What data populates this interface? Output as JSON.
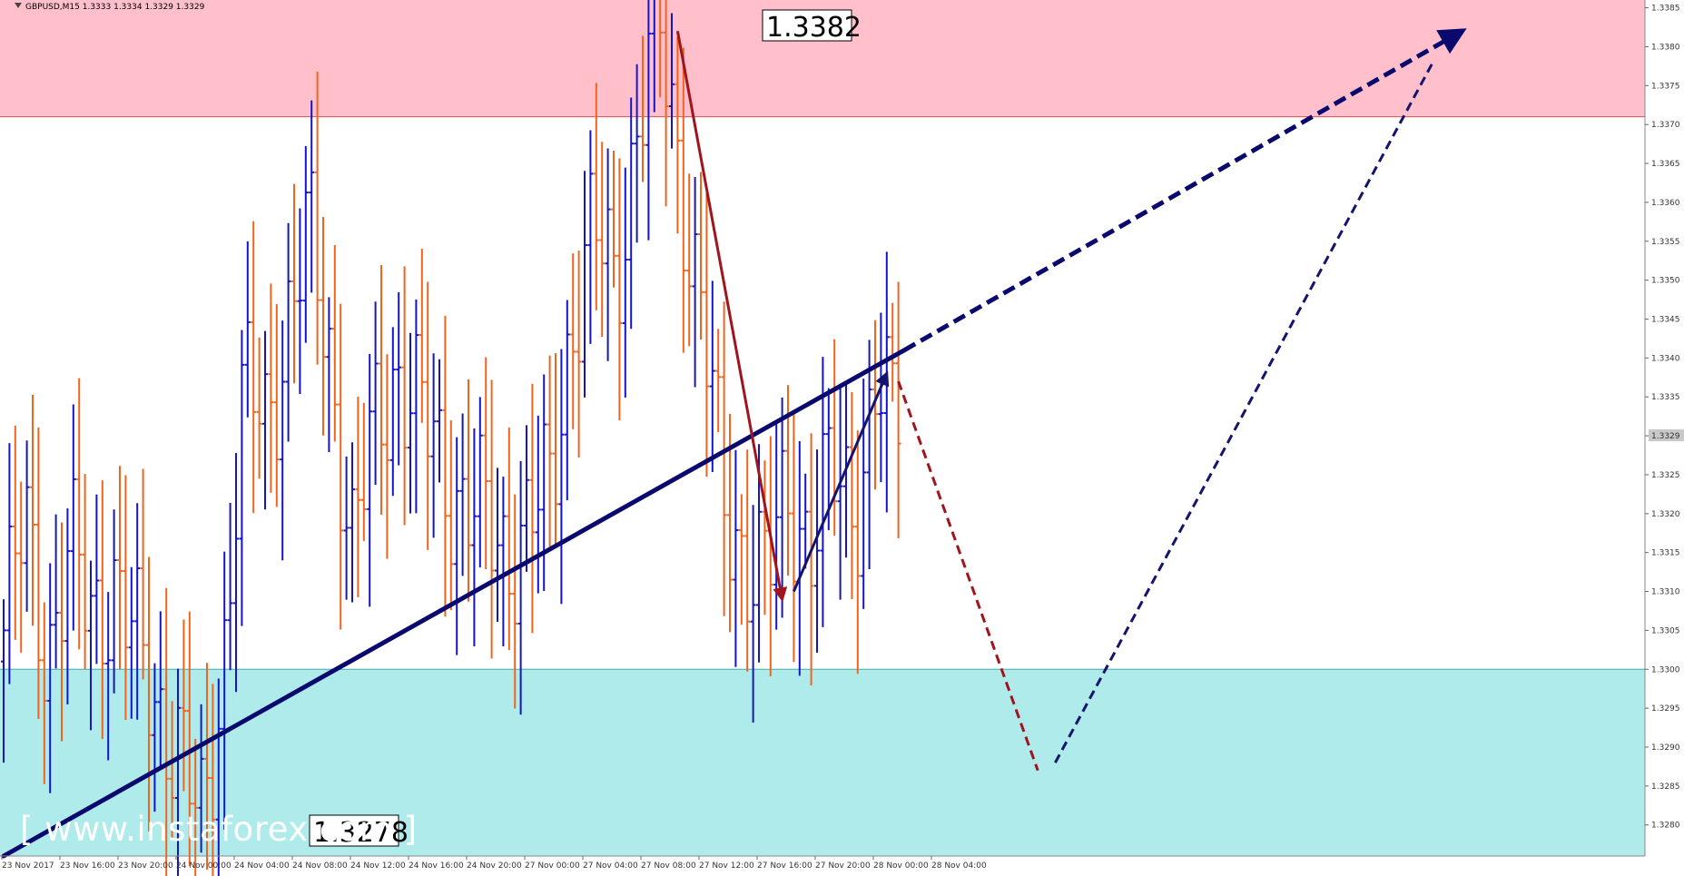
{
  "header": {
    "symbol_info": "GBPUSD,M15  1.3333 1.3334 1.3329 1.3329"
  },
  "watermark": "[ www.instaforex.com ]",
  "colors": {
    "bull_candle": "#1414c8",
    "bear_candle": "#f0641e",
    "resistance_zone": "#ffc0cb",
    "support_zone": "#afebeb",
    "trendline": "#0a0a6e",
    "down_wave": "#a0141e",
    "up_wave": "#14146e"
  },
  "chart_data": {
    "type": "bar",
    "title": "",
    "xlabel": "",
    "ylabel": "",
    "ylim": [
      1.3276,
      1.3386
    ],
    "y_ticks": [
      "1.3280",
      "1.3285",
      "1.3290",
      "1.3295",
      "1.3300",
      "1.3305",
      "1.3310",
      "1.3315",
      "1.3320",
      "1.3325",
      "1.3330",
      "1.3335",
      "1.3340",
      "1.3345",
      "1.3350",
      "1.3355",
      "1.3360",
      "1.3365",
      "1.3370",
      "1.3375",
      "1.3380",
      "1.3385"
    ],
    "x_ticks": [
      "23 Nov 2017",
      "23 Nov 16:00",
      "23 Nov 20:00",
      "24 Nov 00:00",
      "24 Nov 04:00",
      "24 Nov 08:00",
      "24 Nov 12:00",
      "24 Nov 16:00",
      "24 Nov 20:00",
      "27 Nov 00:00",
      "27 Nov 04:00",
      "27 Nov 08:00",
      "27 Nov 12:00",
      "27 Nov 16:00",
      "27 Nov 20:00",
      "28 Nov 00:00",
      "28 Nov 04:00"
    ],
    "x_tick_count": 17,
    "current_price": "1.3329",
    "zones": {
      "resistance": [
        1.3371,
        1.3386
      ],
      "support": [
        1.3276,
        1.33
      ]
    },
    "annotations": {
      "high_label": "1.3382",
      "low_label": "1.3278"
    },
    "candle_count": 155,
    "candles_range_bars": [
      0,
      154
    ],
    "last_close": 1.3329,
    "anchor_prices": [
      1.3305,
      1.3318,
      1.3303,
      1.3314,
      1.3307,
      1.3312,
      1.3302,
      1.3297,
      1.329,
      1.3278,
      1.33,
      1.3335,
      1.3332,
      1.3345,
      1.3355,
      1.334,
      1.3315,
      1.333,
      1.334,
      1.3332,
      1.3327,
      1.3322,
      1.3318,
      1.3316,
      1.3318,
      1.3322,
      1.3345,
      1.3355,
      1.335,
      1.337,
      1.3382,
      1.3365,
      1.3345,
      1.332,
      1.3316,
      1.3311,
      1.3323,
      1.3317,
      1.3324,
      1.3322,
      1.3336,
      1.3329
    ],
    "trendline": {
      "from": [
        0,
        1.3276
      ],
      "to": [
        155,
        1.3341
      ],
      "projected_to": [
        251,
        1.3382
      ]
    },
    "waves": [
      {
        "type": "down",
        "from": [
          116,
          1.3382
        ],
        "to": [
          134,
          1.3309
        ]
      },
      {
        "type": "up",
        "from": [
          136,
          1.331
        ],
        "to": [
          152,
          1.3338
        ]
      },
      {
        "type": "down-projection",
        "from": [
          154,
          1.3337
        ],
        "to": [
          178,
          1.3287
        ]
      },
      {
        "type": "up-projection",
        "from": [
          181,
          1.3288
        ],
        "to": [
          246,
          1.3378
        ]
      }
    ]
  }
}
